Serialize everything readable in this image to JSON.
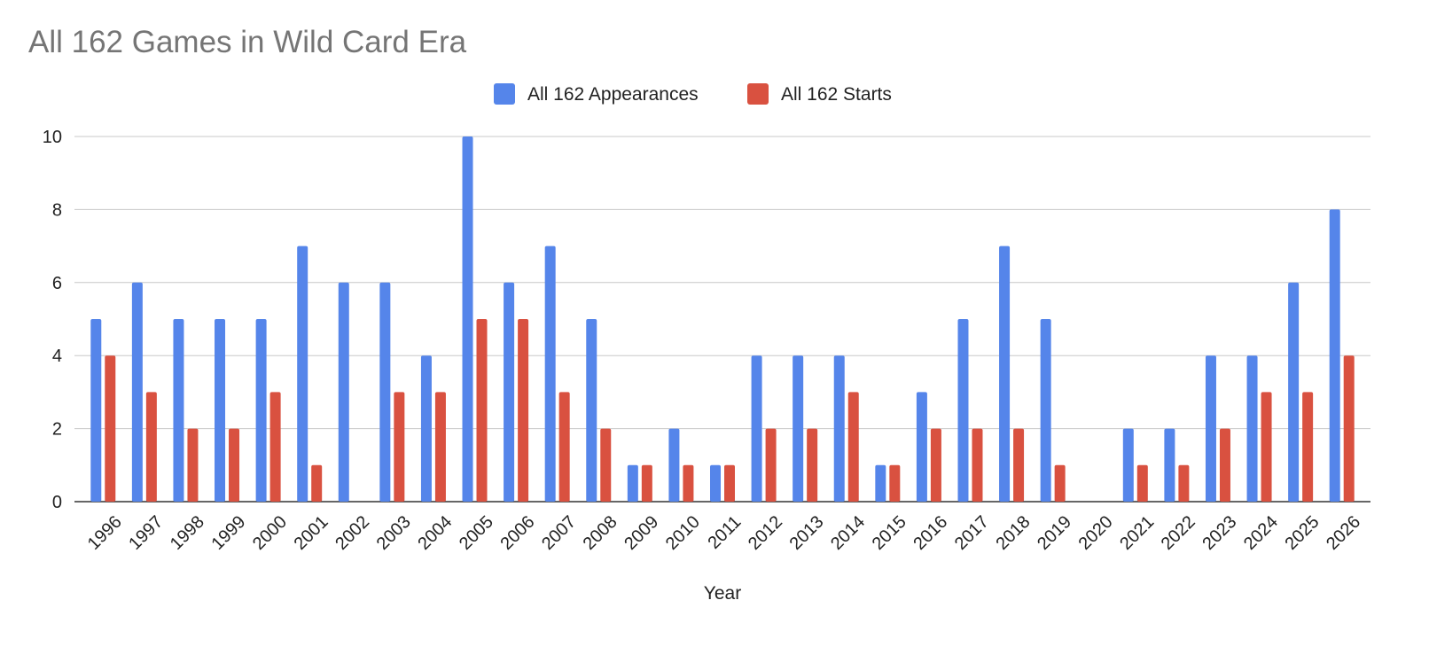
{
  "chart_data": {
    "type": "bar",
    "title": "All 162 Games in Wild Card Era",
    "xlabel": "Year",
    "ylabel": "",
    "ylim": [
      0,
      10
    ],
    "yticks": [
      0,
      2,
      4,
      6,
      8,
      10
    ],
    "grid": true,
    "legend_position": "top",
    "categories": [
      "1996",
      "1997",
      "1998",
      "1999",
      "2000",
      "2001",
      "2002",
      "2003",
      "2004",
      "2005",
      "2006",
      "2007",
      "2008",
      "2009",
      "2010",
      "2011",
      "2012",
      "2013",
      "2014",
      "2015",
      "2016",
      "2017",
      "2018",
      "2019",
      "2020",
      "2021",
      "2022",
      "2023",
      "2024",
      "2025",
      "2026"
    ],
    "series": [
      {
        "name": "All 162 Appearances",
        "color": "#5585EA",
        "values": [
          5,
          6,
          5,
          5,
          5,
          7,
          6,
          6,
          4,
          10,
          6,
          7,
          5,
          1,
          2,
          1,
          4,
          4,
          4,
          1,
          3,
          5,
          7,
          5,
          0,
          2,
          2,
          4,
          4,
          6,
          8
        ]
      },
      {
        "name": "All 162 Starts",
        "color": "#D95140",
        "values": [
          4,
          3,
          2,
          2,
          3,
          1,
          0,
          3,
          3,
          5,
          5,
          3,
          2,
          1,
          1,
          1,
          2,
          2,
          3,
          1,
          2,
          2,
          2,
          1,
          0,
          1,
          1,
          2,
          3,
          3,
          4
        ]
      }
    ]
  }
}
